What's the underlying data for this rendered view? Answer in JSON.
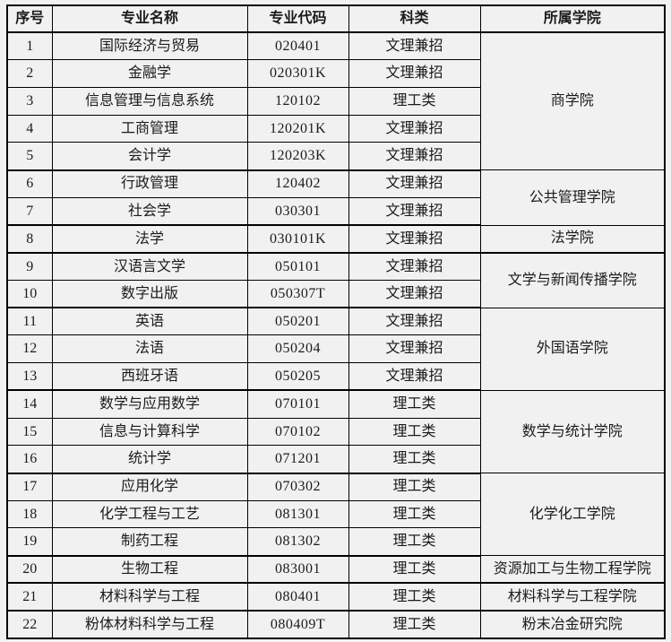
{
  "colors": {
    "page_background": "#f1f1f1",
    "table_border": "#000000",
    "text": "#1b1b1b"
  },
  "table": {
    "headers": [
      "序号",
      "专业名称",
      "专业代码",
      "科类",
      "所属学院"
    ],
    "rows": [
      {
        "no": "1",
        "major": "国际经济与贸易",
        "code": "020401",
        "category": "文理兼招",
        "college": "商学院",
        "college_rowspan": 5
      },
      {
        "no": "2",
        "major": "金融学",
        "code": "020301K",
        "category": "文理兼招"
      },
      {
        "no": "3",
        "major": "信息管理与信息系统",
        "code": "120102",
        "category": "理工类"
      },
      {
        "no": "4",
        "major": "工商管理",
        "code": "120201K",
        "category": "文理兼招"
      },
      {
        "no": "5",
        "major": "会计学",
        "code": "120203K",
        "category": "文理兼招",
        "group_end": true
      },
      {
        "no": "6",
        "major": "行政管理",
        "code": "120402",
        "category": "文理兼招",
        "college": "公共管理学院",
        "college_rowspan": 2
      },
      {
        "no": "7",
        "major": "社会学",
        "code": "030301",
        "category": "文理兼招",
        "group_end": true
      },
      {
        "no": "8",
        "major": "法学",
        "code": "030101K",
        "category": "文理兼招",
        "college": "法学院",
        "college_rowspan": 1,
        "group_end": true
      },
      {
        "no": "9",
        "major": "汉语言文学",
        "code": "050101",
        "category": "文理兼招",
        "college": "文学与新闻传播学院",
        "college_rowspan": 2
      },
      {
        "no": "10",
        "major": "数字出版",
        "code": "050307T",
        "category": "文理兼招",
        "group_end": true
      },
      {
        "no": "11",
        "major": "英语",
        "code": "050201",
        "category": "文理兼招",
        "college": "外国语学院",
        "college_rowspan": 3
      },
      {
        "no": "12",
        "major": "法语",
        "code": "050204",
        "category": "文理兼招"
      },
      {
        "no": "13",
        "major": "西班牙语",
        "code": "050205",
        "category": "文理兼招",
        "group_end": true
      },
      {
        "no": "14",
        "major": "数学与应用数学",
        "code": "070101",
        "category": "理工类",
        "college": "数学与统计学院",
        "college_rowspan": 3
      },
      {
        "no": "15",
        "major": "信息与计算科学",
        "code": "070102",
        "category": "理工类"
      },
      {
        "no": "16",
        "major": "统计学",
        "code": "071201",
        "category": "理工类",
        "group_end": true
      },
      {
        "no": "17",
        "major": "应用化学",
        "code": "070302",
        "category": "理工类",
        "college": "化学化工学院",
        "college_rowspan": 3
      },
      {
        "no": "18",
        "major": "化学工程与工艺",
        "code": "081301",
        "category": "理工类"
      },
      {
        "no": "19",
        "major": "制药工程",
        "code": "081302",
        "category": "理工类",
        "group_end": true
      },
      {
        "no": "20",
        "major": "生物工程",
        "code": "083001",
        "category": "理工类",
        "college": "资源加工与生物工程学院",
        "college_rowspan": 1,
        "group_end": true
      },
      {
        "no": "21",
        "major": "材料科学与工程",
        "code": "080401",
        "category": "理工类",
        "college": "材料科学与工程学院",
        "college_rowspan": 1,
        "group_end": true
      },
      {
        "no": "22",
        "major": "粉体材料科学与工程",
        "code": "080409T",
        "category": "理工类",
        "college": "粉末冶金研究院",
        "college_rowspan": 1
      }
    ]
  }
}
